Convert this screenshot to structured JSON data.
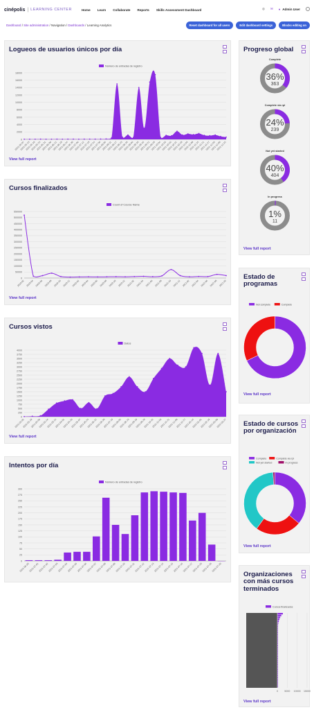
{
  "header": {
    "brand": "cinépolis",
    "brand_sub": "LEARNING CENTER",
    "nav": [
      "Home",
      "Learn",
      "Collaborate",
      "Reports",
      "Skills Assessment Dashboard"
    ],
    "user": "Admin User"
  },
  "breadcrumb": [
    "Dashboard",
    "Site administration",
    "Navigation",
    "Dashboards",
    "Learning Analytics"
  ],
  "buttons": {
    "reset": "Reset dashboard for all users",
    "edit": "Edit dashboard settings",
    "blocks": "Blocks editing on"
  },
  "view_full_report": "View full report",
  "colors": {
    "purple": "#8a2be2",
    "red": "#ee1111",
    "teal": "#22c7c7",
    "magenta": "#a0106a",
    "gray": "#8c8c8c",
    "link": "#5a34c8"
  },
  "cards": {
    "logins": {
      "title": "Logueos de usuarios únicos por día"
    },
    "courses_done": {
      "title": "Cursos finalizados"
    },
    "courses_seen": {
      "title": "Cursos vistos"
    },
    "attempts": {
      "title": "Intentos por día"
    },
    "progress": {
      "title": "Progreso global"
    },
    "programs": {
      "title": "Estado de programas"
    },
    "by_org": {
      "title": "Estado de cursos por organización"
    },
    "top_orgs": {
      "title": "Organizaciones con más cursos terminados"
    }
  },
  "chart_data": [
    {
      "id": "logins",
      "type": "area",
      "legend": [
        "Número de entradas de registro"
      ],
      "ylim": [
        0,
        18000
      ],
      "yticks": [
        0,
        2000,
        4000,
        6000,
        8000,
        10000,
        12000,
        14000,
        16000,
        18000
      ],
      "values": [
        50,
        50,
        50,
        60,
        50,
        50,
        60,
        50,
        60,
        60,
        50,
        60,
        70,
        60,
        80,
        120,
        400,
        15000,
        600,
        1200,
        500,
        14000,
        3000,
        15500,
        17500,
        500,
        1100,
        1000,
        2200,
        1200,
        1500,
        1300,
        1600,
        1100,
        1000,
        1200,
        800,
        600
      ],
      "xticks": [
        "2021-05-07",
        "2021-05-13",
        "2021-05-19",
        "2021-05-25",
        "2021-05-31",
        "2021-06-06",
        "2021-06-12",
        "2021-06-18",
        "2021-06-24",
        "2021-06-30",
        "2021-07-06",
        "2021-07-12",
        "2021-07-18",
        "2021-07-24",
        "2021-07-30",
        "2021-08-05",
        "2021-08-11",
        "2021-08-17",
        "2021-08-23",
        "2021-08-29",
        "2021-09-04",
        "2021-09-10",
        "2021-09-16",
        "2021-09-22",
        "2021-09-28",
        "2021-10-04",
        "2021-10-10",
        "2021-10-16",
        "2021-10-22",
        "2021-10-28",
        "2021-11-03",
        "2021-11-09",
        "2021-11-15",
        "2021-11-21",
        "2021-11-27",
        "2021-12-03",
        "2021-12-09",
        "2021-12-15"
      ]
    },
    {
      "id": "courses_done",
      "type": "line",
      "legend": [
        "Count of Course Name"
      ],
      "ylim": [
        0,
        550000
      ],
      "yticks": [
        0,
        50000,
        100000,
        150000,
        200000,
        250000,
        300000,
        350000,
        400000,
        450000,
        500000,
        550000
      ],
      "values": [
        520000,
        15000,
        20000,
        40000,
        12000,
        8000,
        9000,
        10000,
        9000,
        10000,
        11000,
        10000,
        12000,
        14000,
        11000,
        18000,
        70000,
        20000,
        10000,
        13000,
        12000,
        30000,
        20000
      ],
      "xticks": [
        "2019-02",
        "2019-04",
        "2019-06",
        "2019-08",
        "2019-10",
        "2019-12",
        "2020-02",
        "2020-04",
        "2020-06",
        "2020-08",
        "2020-10",
        "2020-12",
        "2021-02",
        "2021-04",
        "2021-06",
        "2021-08",
        "2021-10",
        "2021-12",
        "2022-02",
        "2022-04",
        "2022-06",
        "2022-08",
        "2022-10"
      ]
    },
    {
      "id": "courses_seen",
      "type": "area",
      "legend": [
        "Datos"
      ],
      "ylim": [
        0,
        4000
      ],
      "yticks": [
        0,
        250,
        500,
        750,
        1000,
        1250,
        1500,
        1750,
        2000,
        2250,
        2500,
        2750,
        3000,
        3250,
        3500,
        3750,
        4000
      ],
      "values": [
        10,
        30,
        60,
        450,
        820,
        950,
        1020,
        500,
        850,
        480,
        1250,
        1400,
        1800,
        2400,
        1800,
        1500,
        2300,
        2900,
        3500,
        3100,
        3000,
        4150,
        3800,
        1900,
        3800,
        1500
      ],
      "xticks": [
        "2021-01-01",
        "2021-01-19",
        "2021-02-06",
        "2021-02-24",
        "2021-03-14",
        "2021-04-01",
        "2021-04-19",
        "2021-05-07",
        "2021-05-25",
        "2021-06-12",
        "2021-06-30",
        "2021-07-18",
        "2021-08-05",
        "2021-08-23",
        "2021-09-10",
        "2021-09-28",
        "2021-10-16",
        "2021-11-03",
        "2021-11-21",
        "2021-12-09",
        "2021-12-27",
        "2022-01-14",
        "2022-02-01",
        "2022-02-19",
        "2022-03-09",
        "2022-03-27"
      ]
    },
    {
      "id": "attempts",
      "type": "bar",
      "legend": [
        "Número de entradas de registro"
      ],
      "ylim": [
        0,
        300
      ],
      "yticks": [
        0,
        25,
        50,
        75,
        100,
        125,
        150,
        175,
        200,
        225,
        250,
        275,
        300
      ],
      "categories": [
        "2021-06-30",
        "2021-07-01",
        "2021-07-02",
        "2021-07-03",
        "2021-07-04",
        "2021-07-05",
        "2021-07-06",
        "2021-07-07",
        "2021-07-08",
        "2021-07-09",
        "2021-07-10",
        "2021-07-11",
        "2021-07-12",
        "2021-07-13",
        "2021-07-14",
        "2021-07-15",
        "2021-07-16",
        "2021-07-17",
        "2021-07-18",
        "2021-07-19",
        "2021-07-20"
      ],
      "values": [
        3,
        3,
        3,
        5,
        35,
        38,
        38,
        102,
        263,
        150,
        112,
        190,
        285,
        290,
        288,
        285,
        283,
        168,
        200,
        68,
        0
      ]
    },
    {
      "id": "progress",
      "type": "pie",
      "items": [
        {
          "label": "Complete",
          "percent": "36%",
          "count": "363",
          "fraction": 0.36
        },
        {
          "label": "Complete via rpl",
          "percent": "24%",
          "count": "239",
          "fraction": 0.24
        },
        {
          "label": "Not yet started",
          "percent": "40%",
          "count": "404",
          "fraction": 0.4
        },
        {
          "label": "In progress",
          "percent": "1%",
          "count": "11",
          "fraction": 0.01
        }
      ]
    },
    {
      "id": "programs",
      "type": "pie",
      "legend": [
        "Not complete",
        "Complete"
      ],
      "values": [
        68,
        32
      ]
    },
    {
      "id": "by_org",
      "type": "pie",
      "legend": [
        "Complete",
        "Complete via rpl",
        "Not yet started",
        "In progress"
      ],
      "values": [
        36,
        24,
        39,
        1
      ]
    },
    {
      "id": "top_orgs",
      "type": "bar",
      "legend": [
        "Cursos finalizados"
      ],
      "xlim": [
        0,
        15000
      ],
      "xticks": [
        "0",
        "5000",
        "10000",
        "15000"
      ]
    }
  ]
}
